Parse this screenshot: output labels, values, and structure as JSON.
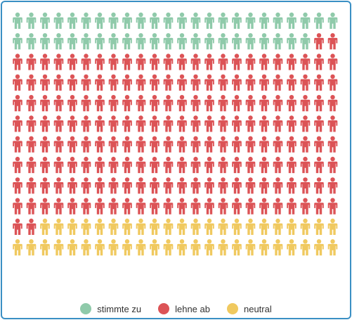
{
  "chart_data": {
    "type": "pictogram",
    "icon": "person-icon",
    "columns": 24,
    "rows": 12,
    "series": [
      {
        "name": "stimmte zu",
        "count": 46,
        "color": "#8fcaaa"
      },
      {
        "name": "lehne ab",
        "count": 196,
        "color": "#dc5356"
      },
      {
        "name": "neutral",
        "count": 46,
        "color": "#f0c95f"
      }
    ]
  }
}
